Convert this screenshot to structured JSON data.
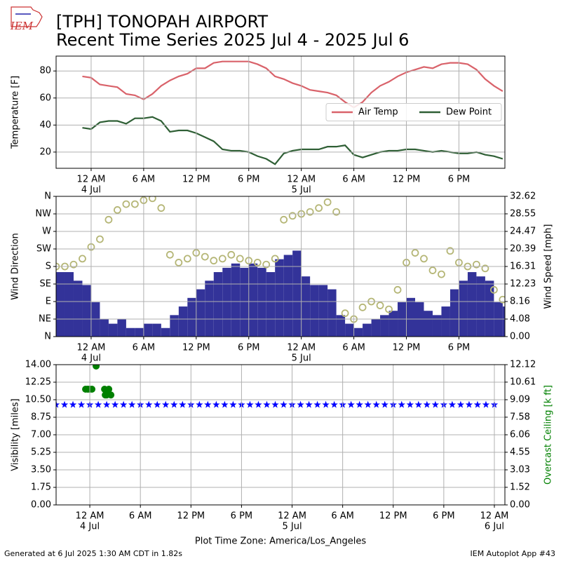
{
  "title": "[TPH] TONOPAH AIRPORT",
  "subtitle": "Recent Time Series 2025 Jul 4 - 2025 Jul 6",
  "logo_text": "IEM",
  "footer_left": "Generated at 6 Jul 2025 1:30 AM CDT in 1.82s",
  "footer_right": "IEM Autoplot App #43",
  "chart_data": [
    {
      "type": "line",
      "ylabel": "Temperature [F]",
      "grid": true,
      "legend": "center right",
      "xlim": [
        "3 Jul 20:00",
        "5 Jul 23:15"
      ],
      "ylim": [
        8,
        91
      ],
      "yticks": [
        20,
        40,
        60,
        80
      ],
      "xticks": [
        {
          "value": "4 Jul 00:00",
          "label": "12 AM",
          "date": "4 Jul"
        },
        {
          "value": "4 Jul 06:00",
          "label": "6 AM"
        },
        {
          "value": "4 Jul 12:00",
          "label": "12 PM"
        },
        {
          "value": "4 Jul 18:00",
          "label": "6 PM"
        },
        {
          "value": "5 Jul 00:00",
          "label": "12 AM",
          "date": "5 Jul"
        },
        {
          "value": "5 Jul 06:00",
          "label": "6 AM"
        },
        {
          "value": "5 Jul 12:00",
          "label": "12 PM"
        },
        {
          "value": "5 Jul 18:00",
          "label": "6 PM"
        }
      ],
      "x": [
        "3 Jul 23:00",
        "4 Jul 00:00",
        "4 Jul 01:00",
        "4 Jul 02:00",
        "4 Jul 03:00",
        "4 Jul 04:00",
        "4 Jul 05:00",
        "4 Jul 06:00",
        "4 Jul 07:00",
        "4 Jul 08:00",
        "4 Jul 09:00",
        "4 Jul 10:00",
        "4 Jul 11:00",
        "4 Jul 12:00",
        "4 Jul 13:00",
        "4 Jul 14:00",
        "4 Jul 15:00",
        "4 Jul 16:00",
        "4 Jul 17:00",
        "4 Jul 18:00",
        "4 Jul 19:00",
        "4 Jul 20:00",
        "4 Jul 21:00",
        "4 Jul 22:00",
        "4 Jul 23:00",
        "5 Jul 00:00",
        "5 Jul 01:00",
        "5 Jul 02:00",
        "5 Jul 03:00",
        "5 Jul 04:00",
        "5 Jul 05:00",
        "5 Jul 06:00",
        "5 Jul 07:00",
        "5 Jul 08:00",
        "5 Jul 09:00",
        "5 Jul 10:00",
        "5 Jul 11:00",
        "5 Jul 12:00",
        "5 Jul 13:00",
        "5 Jul 14:00",
        "5 Jul 15:00",
        "5 Jul 16:00",
        "5 Jul 17:00",
        "5 Jul 18:00",
        "5 Jul 19:00",
        "5 Jul 20:00",
        "5 Jul 21:00",
        "5 Jul 22:00",
        "5 Jul 23:00"
      ],
      "series": [
        {
          "name": "Air Temp",
          "color": "#d9626a",
          "kind": "line",
          "values": [
            76,
            75,
            70,
            69,
            68,
            63,
            62,
            59,
            63,
            69,
            73,
            76,
            78,
            82,
            82,
            86,
            87,
            87,
            87,
            87,
            85,
            82,
            76,
            74,
            71,
            69,
            66,
            65,
            64,
            62,
            57,
            53,
            57,
            64,
            69,
            72,
            76,
            79,
            81,
            83,
            82,
            85,
            86,
            86,
            85,
            81,
            74,
            69,
            65
          ]
        },
        {
          "name": "Dew Point",
          "color": "#2f5f35",
          "kind": "line",
          "values": [
            38,
            37,
            42,
            43,
            43,
            41,
            45,
            45,
            46,
            43,
            35,
            36,
            36,
            34,
            31,
            28,
            22,
            21,
            21,
            20,
            17,
            15,
            11,
            19,
            21,
            22,
            22,
            22,
            24,
            24,
            25,
            18,
            16,
            18,
            20,
            21,
            21,
            22,
            22,
            21,
            20,
            21,
            20,
            19,
            19,
            20,
            18,
            17,
            15
          ]
        }
      ]
    },
    {
      "type": "combo",
      "ylabel": "Wind Direction",
      "y2label": "Wind Speed [mph]",
      "grid": true,
      "xlim": [
        "3 Jul 20:00",
        "5 Jul 23:15"
      ],
      "ylim": [
        0,
        360
      ],
      "yticks": [
        {
          "value": 0,
          "label": "N"
        },
        {
          "value": 45,
          "label": "NE"
        },
        {
          "value": 90,
          "label": "E"
        },
        {
          "value": 135,
          "label": "SE"
        },
        {
          "value": 180,
          "label": "S"
        },
        {
          "value": 225,
          "label": "SW"
        },
        {
          "value": 270,
          "label": "W"
        },
        {
          "value": 315,
          "label": "NW"
        },
        {
          "value": 360,
          "label": "N"
        }
      ],
      "y2lim": [
        0,
        32.62
      ],
      "y2ticks": [
        {
          "value": 0,
          "label": "0.00"
        },
        4.08,
        8.16,
        12.23,
        16.31,
        20.39,
        24.47,
        28.55,
        32.62
      ],
      "xticks": [
        {
          "value": "4 Jul 00:00",
          "label": "12 AM",
          "date": "4 Jul"
        },
        {
          "value": "4 Jul 06:00",
          "label": "6 AM"
        },
        {
          "value": "4 Jul 12:00",
          "label": "12 PM"
        },
        {
          "value": "4 Jul 18:00",
          "label": "6 PM"
        },
        {
          "value": "5 Jul 00:00",
          "label": "12 AM",
          "date": "5 Jul"
        },
        {
          "value": "5 Jul 06:00",
          "label": "6 AM"
        },
        {
          "value": "5 Jul 12:00",
          "label": "12 PM"
        },
        {
          "value": "5 Jul 18:00",
          "label": "6 PM"
        }
      ],
      "x": [
        "3 Jul 20:00",
        "3 Jul 21:00",
        "3 Jul 22:00",
        "3 Jul 23:00",
        "4 Jul 00:00",
        "4 Jul 01:00",
        "4 Jul 02:00",
        "4 Jul 03:00",
        "4 Jul 04:00",
        "4 Jul 05:00",
        "4 Jul 06:00",
        "4 Jul 07:00",
        "4 Jul 08:00",
        "4 Jul 09:00",
        "4 Jul 10:00",
        "4 Jul 11:00",
        "4 Jul 12:00",
        "4 Jul 13:00",
        "4 Jul 14:00",
        "4 Jul 15:00",
        "4 Jul 16:00",
        "4 Jul 17:00",
        "4 Jul 18:00",
        "4 Jul 19:00",
        "4 Jul 20:00",
        "4 Jul 21:00",
        "4 Jul 22:00",
        "4 Jul 23:00",
        "5 Jul 00:00",
        "5 Jul 01:00",
        "5 Jul 02:00",
        "5 Jul 03:00",
        "5 Jul 04:00",
        "5 Jul 05:00",
        "5 Jul 06:00",
        "5 Jul 07:00",
        "5 Jul 08:00",
        "5 Jul 09:00",
        "5 Jul 10:00",
        "5 Jul 11:00",
        "5 Jul 12:00",
        "5 Jul 13:00",
        "5 Jul 14:00",
        "5 Jul 15:00",
        "5 Jul 16:00",
        "5 Jul 17:00",
        "5 Jul 18:00",
        "5 Jul 19:00",
        "5 Jul 20:00",
        "5 Jul 21:00",
        "5 Jul 22:00",
        "5 Jul 23:00"
      ],
      "series": [
        {
          "color": "#333399",
          "kind": "bar",
          "axis": "y2",
          "values": [
            15,
            15,
            13,
            12,
            8,
            4,
            3,
            4,
            2,
            2,
            3,
            3,
            2,
            5,
            7,
            9,
            11,
            13,
            15,
            16,
            17,
            16,
            17,
            16,
            15,
            18,
            19,
            20,
            14,
            12,
            12,
            11,
            5,
            3,
            2,
            3,
            4,
            5,
            6,
            8,
            9,
            8,
            6,
            5,
            7,
            11,
            13,
            15,
            14,
            13,
            8,
            7
          ]
        },
        {
          "color": "#b5b676",
          "kind": "circle",
          "values": [
            180,
            180,
            185,
            200,
            230,
            250,
            300,
            325,
            340,
            340,
            350,
            355,
            330,
            210,
            190,
            200,
            215,
            205,
            195,
            200,
            210,
            200,
            195,
            190,
            185,
            200,
            300,
            310,
            315,
            320,
            330,
            345,
            320,
            60,
            45,
            75,
            90,
            80,
            70,
            120,
            190,
            215,
            200,
            170,
            160,
            220,
            190,
            180,
            185,
            175,
            120,
            95
          ]
        }
      ]
    },
    {
      "type": "scatter",
      "ylabel": "Visibility [miles]",
      "y2label": "Overcast Ceiling [k ft]",
      "y2label_color": "#008000",
      "xlabel": "Plot Time Zone: America/Los_Angeles",
      "grid": true,
      "xlim": [
        "3 Jul 20:00",
        "6 Jul 01:15"
      ],
      "ylim": [
        0,
        14
      ],
      "yticks": [
        {
          "value": 0,
          "label": "0.00"
        },
        1.75,
        {
          "value": 3.5,
          "label": "3.50"
        },
        5.25,
        {
          "value": 7,
          "label": "7.00"
        },
        8.75,
        {
          "value": 10.5,
          "label": "10.50"
        },
        12.25,
        {
          "value": 14,
          "label": "14.00"
        }
      ],
      "y2lim": [
        0,
        12.12
      ],
      "y2ticks": [
        {
          "value": 0,
          "label": "0.00"
        },
        1.52,
        3.03,
        4.55,
        6.06,
        7.58,
        9.09,
        10.61,
        12.12
      ],
      "xticks": [
        {
          "value": "4 Jul 00:00",
          "label": "12 AM",
          "date": "4 Jul"
        },
        {
          "value": "4 Jul 06:00",
          "label": "6 AM"
        },
        {
          "value": "4 Jul 12:00",
          "label": "12 PM"
        },
        {
          "value": "4 Jul 18:00",
          "label": "6 PM"
        },
        {
          "value": "5 Jul 00:00",
          "label": "12 AM",
          "date": "5 Jul"
        },
        {
          "value": "5 Jul 06:00",
          "label": "6 AM"
        },
        {
          "value": "5 Jul 12:00",
          "label": "12 PM"
        },
        {
          "value": "5 Jul 18:00",
          "label": "6 PM"
        },
        {
          "value": "6 Jul 00:00",
          "label": "12 AM",
          "date": "6 Jul"
        }
      ],
      "series": [
        {
          "color": "#0000ff",
          "kind": "star",
          "x": [
            "3 Jul 20:00",
            "3 Jul 21:00",
            "3 Jul 22:00",
            "3 Jul 23:00",
            "4 Jul 00:00",
            "4 Jul 01:00",
            "4 Jul 02:00",
            "4 Jul 03:00",
            "4 Jul 04:00",
            "4 Jul 05:00",
            "4 Jul 06:00",
            "4 Jul 07:00",
            "4 Jul 08:00",
            "4 Jul 09:00",
            "4 Jul 10:00",
            "4 Jul 11:00",
            "4 Jul 12:00",
            "4 Jul 13:00",
            "4 Jul 14:00",
            "4 Jul 15:00",
            "4 Jul 16:00",
            "4 Jul 17:00",
            "4 Jul 18:00",
            "4 Jul 19:00",
            "4 Jul 20:00",
            "4 Jul 21:00",
            "4 Jul 22:00",
            "4 Jul 23:00",
            "5 Jul 00:00",
            "5 Jul 01:00",
            "5 Jul 02:00",
            "5 Jul 03:00",
            "5 Jul 04:00",
            "5 Jul 05:00",
            "5 Jul 06:00",
            "5 Jul 07:00",
            "5 Jul 08:00",
            "5 Jul 09:00",
            "5 Jul 10:00",
            "5 Jul 11:00",
            "5 Jul 12:00",
            "5 Jul 13:00",
            "5 Jul 14:00",
            "5 Jul 15:00",
            "5 Jul 16:00",
            "5 Jul 17:00",
            "5 Jul 18:00",
            "5 Jul 19:00",
            "5 Jul 20:00",
            "5 Jul 21:00",
            "5 Jul 22:00",
            "5 Jul 23:00",
            "6 Jul 00:00"
          ],
          "values": [
            10,
            10,
            10,
            10,
            10,
            10,
            10,
            10,
            10,
            10,
            10,
            10,
            10,
            10,
            10,
            10,
            10,
            10,
            10,
            10,
            10,
            10,
            10,
            10,
            10,
            10,
            10,
            10,
            10,
            10,
            10,
            10,
            10,
            10,
            10,
            10,
            10,
            10,
            10,
            10,
            10,
            10,
            10,
            10,
            10,
            10,
            10,
            10,
            10,
            10,
            10,
            10,
            10
          ]
        },
        {
          "color": "#008000",
          "kind": "dot",
          "axis": "y2",
          "x": [
            "3 Jul 23:30",
            "3 Jul 23:45",
            "4 Jul 00:00",
            "4 Jul 00:15",
            "4 Jul 00:45",
            "4 Jul 01:45",
            "4 Jul 01:50",
            "4 Jul 02:00",
            "4 Jul 02:15",
            "4 Jul 02:30"
          ],
          "values": [
            10,
            10,
            10,
            10,
            12,
            10,
            9.5,
            9.5,
            10,
            9.5
          ]
        }
      ]
    }
  ]
}
